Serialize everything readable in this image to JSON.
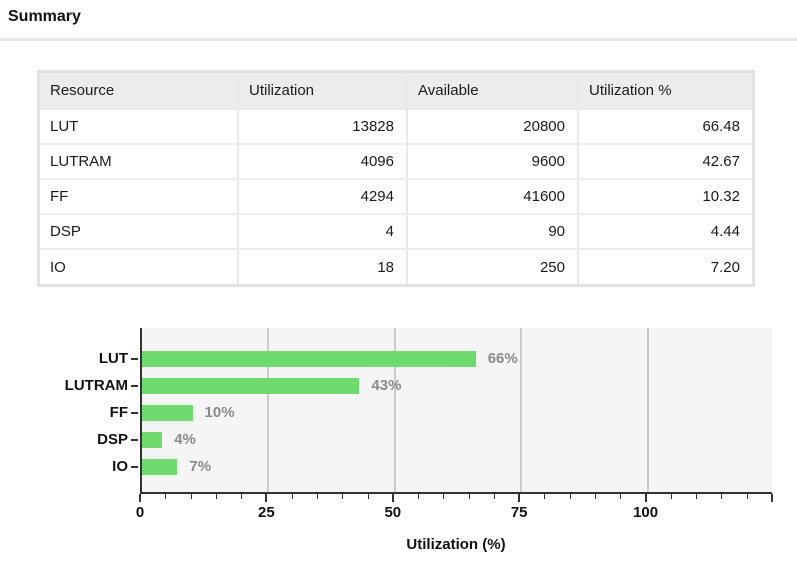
{
  "title": "Summary",
  "table": {
    "headers": [
      "Resource",
      "Utilization",
      "Available",
      "Utilization %"
    ],
    "rows": [
      {
        "resource": "LUT",
        "utilization": "13828",
        "available": "20800",
        "utilization_pct": "66.48"
      },
      {
        "resource": "LUTRAM",
        "utilization": "4096",
        "available": "9600",
        "utilization_pct": "42.67"
      },
      {
        "resource": "FF",
        "utilization": "4294",
        "available": "41600",
        "utilization_pct": "10.32"
      },
      {
        "resource": "DSP",
        "utilization": "4",
        "available": "90",
        "utilization_pct": "4.44"
      },
      {
        "resource": "IO",
        "utilization": "18",
        "available": "250",
        "utilization_pct": "7.20"
      }
    ]
  },
  "chart_data": {
    "type": "bar",
    "orientation": "horizontal",
    "categories": [
      "LUT",
      "LUTRAM",
      "FF",
      "DSP",
      "IO"
    ],
    "values": [
      66,
      43,
      10,
      4,
      7
    ],
    "value_labels": [
      "66%",
      "43%",
      "10%",
      "4%",
      "7%"
    ],
    "xlabel": "Utilization (%)",
    "xlim": [
      0,
      125
    ],
    "xticks": [
      0,
      25,
      50,
      75,
      100
    ],
    "minor_tick_step": 5,
    "grid": true,
    "legend": "none",
    "bar_color": "#6fdb6f",
    "plot_background": "#f5f5f5",
    "gridline_color": "#cbcbcb",
    "value_label_color": "#8a8a8a"
  }
}
